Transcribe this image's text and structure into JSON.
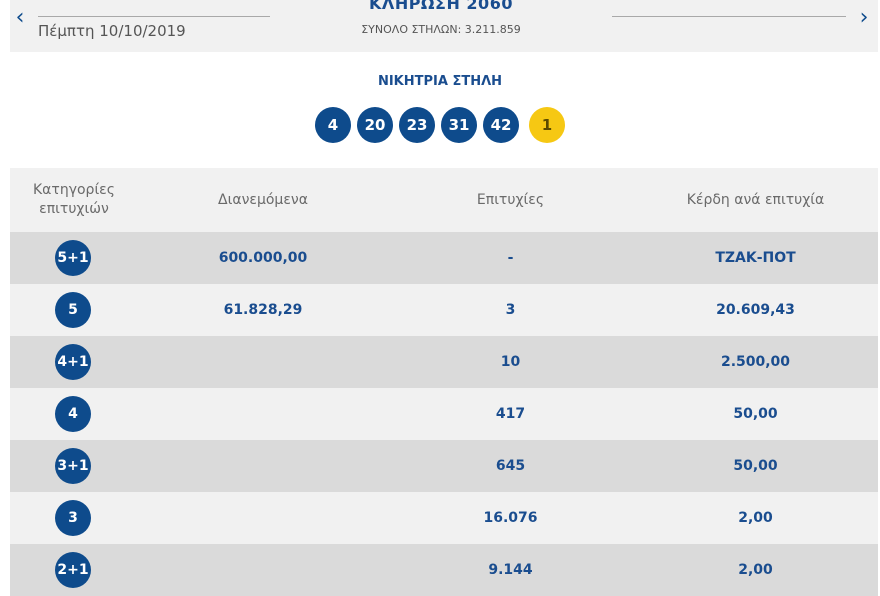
{
  "header": {
    "prev_arrow": "‹",
    "next_arrow": "›",
    "date": "Πέμπτη 10/10/2019",
    "draw_title": "ΚΛΗΡΩΣΗ 2060",
    "total_columns": "ΣΥΝΟΛΟ ΣΤΗΛΩΝ: 3.211.859"
  },
  "winning": {
    "label": "ΝΙΚΗΤΡΙΑ ΣΤΗΛΗ",
    "numbers": [
      "4",
      "20",
      "23",
      "31",
      "42"
    ],
    "joker": "1"
  },
  "table": {
    "headers": {
      "category": "Κατηγορίες επιτυχιών",
      "distributed": "Διανεμόμενα",
      "winners": "Επιτυχίες",
      "prize": "Κέρδη ανά επιτυχία"
    },
    "rows": [
      {
        "category": "5+1",
        "distributed": "600.000,00",
        "winners": "-",
        "prize": "ΤΖΑΚ-ΠΟΤ"
      },
      {
        "category": "5",
        "distributed": "61.828,29",
        "winners": "3",
        "prize": "20.609,43"
      },
      {
        "category": "4+1",
        "distributed": "",
        "winners": "10",
        "prize": "2.500,00"
      },
      {
        "category": "4",
        "distributed": "",
        "winners": "417",
        "prize": "50,00"
      },
      {
        "category": "3+1",
        "distributed": "",
        "winners": "645",
        "prize": "50,00"
      },
      {
        "category": "3",
        "distributed": "",
        "winners": "16.076",
        "prize": "2,00"
      },
      {
        "category": "2+1",
        "distributed": "",
        "winners": "9.144",
        "prize": "2,00"
      }
    ]
  },
  "colors": {
    "brand_blue": "#0e4b8c",
    "joker_yellow": "#f6c813",
    "row_light": "#f1f1f1",
    "row_dark": "#dadada"
  }
}
